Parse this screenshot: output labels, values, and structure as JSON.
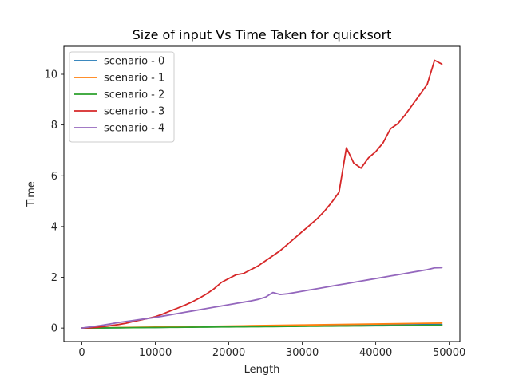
{
  "chart_data": {
    "type": "line",
    "title": "Size of input Vs Time Taken for quicksort",
    "xlabel": "Length",
    "ylabel": "Time",
    "xlim": [
      -2450,
      51450
    ],
    "ylim": [
      -0.53,
      11.1
    ],
    "xticks": [
      0,
      10000,
      20000,
      30000,
      40000,
      50000
    ],
    "xtick_labels": [
      "0",
      "10000",
      "20000",
      "30000",
      "40000",
      "50000"
    ],
    "yticks": [
      0,
      2,
      4,
      6,
      8,
      10
    ],
    "ytick_labels": [
      "0",
      "2",
      "4",
      "6",
      "8",
      "10"
    ],
    "grid": false,
    "legend_position": "top-left",
    "x": [
      0,
      1000,
      2000,
      3000,
      4000,
      5000,
      6000,
      7000,
      8000,
      9000,
      10000,
      11000,
      12000,
      13000,
      14000,
      15000,
      16000,
      17000,
      18000,
      19000,
      20000,
      21000,
      22000,
      23000,
      24000,
      25000,
      26000,
      27000,
      28000,
      29000,
      30000,
      31000,
      32000,
      33000,
      34000,
      35000,
      36000,
      37000,
      38000,
      39000,
      40000,
      41000,
      42000,
      43000,
      44000,
      45000,
      46000,
      47000,
      48000,
      49000
    ],
    "series": [
      {
        "name": "scenario - 0",
        "color": "#1f77b4",
        "values": [
          0,
          0.002,
          0.005,
          0.007,
          0.01,
          0.012,
          0.015,
          0.018,
          0.02,
          0.023,
          0.026,
          0.029,
          0.032,
          0.035,
          0.038,
          0.041,
          0.044,
          0.047,
          0.05,
          0.053,
          0.056,
          0.059,
          0.062,
          0.065,
          0.068,
          0.071,
          0.074,
          0.077,
          0.08,
          0.083,
          0.086,
          0.089,
          0.092,
          0.095,
          0.098,
          0.101,
          0.104,
          0.107,
          0.11,
          0.113,
          0.116,
          0.119,
          0.122,
          0.125,
          0.128,
          0.131,
          0.134,
          0.137,
          0.14,
          0.143
        ]
      },
      {
        "name": "scenario - 1",
        "color": "#ff7f0e",
        "values": [
          0,
          0.004,
          0.008,
          0.012,
          0.016,
          0.02,
          0.024,
          0.028,
          0.032,
          0.036,
          0.04,
          0.044,
          0.048,
          0.052,
          0.056,
          0.06,
          0.064,
          0.068,
          0.072,
          0.076,
          0.08,
          0.084,
          0.088,
          0.092,
          0.096,
          0.1,
          0.104,
          0.108,
          0.112,
          0.116,
          0.12,
          0.124,
          0.128,
          0.132,
          0.136,
          0.14,
          0.144,
          0.148,
          0.152,
          0.156,
          0.16,
          0.164,
          0.168,
          0.172,
          0.176,
          0.18,
          0.184,
          0.188,
          0.192,
          0.196
        ]
      },
      {
        "name": "scenario - 2",
        "color": "#2ca02c",
        "values": [
          0,
          0.002,
          0.004,
          0.007,
          0.009,
          0.011,
          0.013,
          0.016,
          0.018,
          0.02,
          0.022,
          0.025,
          0.027,
          0.029,
          0.031,
          0.034,
          0.036,
          0.038,
          0.04,
          0.043,
          0.045,
          0.047,
          0.049,
          0.052,
          0.054,
          0.056,
          0.058,
          0.061,
          0.063,
          0.065,
          0.067,
          0.07,
          0.072,
          0.074,
          0.076,
          0.079,
          0.081,
          0.083,
          0.085,
          0.088,
          0.09,
          0.092,
          0.094,
          0.097,
          0.099,
          0.101,
          0.103,
          0.106,
          0.108,
          0.11
        ]
      },
      {
        "name": "scenario - 3",
        "color": "#d62728",
        "values": [
          0,
          0.01,
          0.03,
          0.06,
          0.1,
          0.14,
          0.19,
          0.26,
          0.32,
          0.38,
          0.45,
          0.55,
          0.67,
          0.78,
          0.9,
          1.03,
          1.18,
          1.35,
          1.55,
          1.8,
          1.95,
          2.1,
          2.15,
          2.3,
          2.45,
          2.65,
          2.85,
          3.05,
          3.3,
          3.55,
          3.8,
          4.05,
          4.3,
          4.6,
          4.95,
          5.35,
          7.1,
          6.5,
          6.3,
          6.7,
          6.95,
          7.3,
          7.85,
          8.05,
          8.4,
          8.8,
          9.2,
          9.6,
          10.55,
          10.4
        ]
      },
      {
        "name": "scenario - 4",
        "color": "#9467bd",
        "values": [
          0,
          0.04,
          0.08,
          0.12,
          0.17,
          0.22,
          0.26,
          0.3,
          0.34,
          0.38,
          0.42,
          0.47,
          0.52,
          0.57,
          0.62,
          0.67,
          0.72,
          0.77,
          0.82,
          0.87,
          0.92,
          0.97,
          1.02,
          1.07,
          1.13,
          1.22,
          1.4,
          1.32,
          1.35,
          1.4,
          1.45,
          1.5,
          1.55,
          1.6,
          1.65,
          1.7,
          1.75,
          1.8,
          1.85,
          1.9,
          1.95,
          2.0,
          2.05,
          2.1,
          2.15,
          2.2,
          2.25,
          2.3,
          2.37,
          2.38
        ]
      }
    ]
  }
}
